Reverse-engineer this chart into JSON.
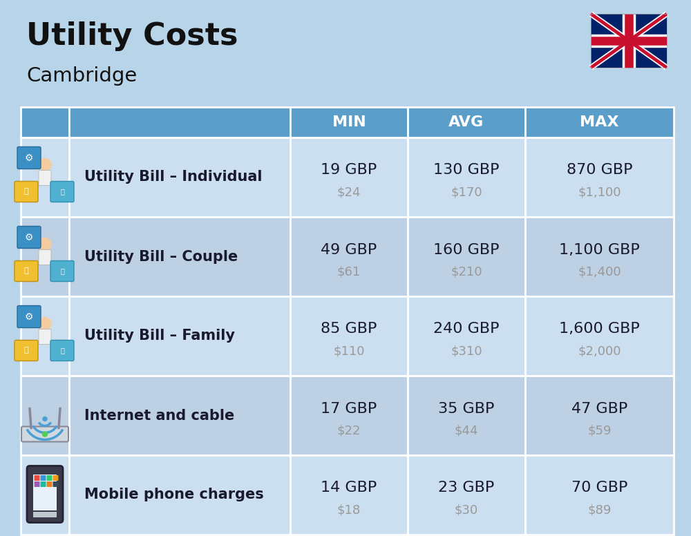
{
  "title": "Utility Costs",
  "subtitle": "Cambridge",
  "background_color": "#b8d4e8",
  "header_color": "#5b9ec9",
  "header_text_color": "#ffffff",
  "row_color_even": "#ccdff0",
  "row_color_odd": "#bdd0e4",
  "header_labels": [
    "MIN",
    "AVG",
    "MAX"
  ],
  "rows": [
    {
      "label": "Utility Bill – Individual",
      "min_gbp": "19 GBP",
      "min_usd": "$24",
      "avg_gbp": "130 GBP",
      "avg_usd": "$170",
      "max_gbp": "870 GBP",
      "max_usd": "$1,100"
    },
    {
      "label": "Utility Bill – Couple",
      "min_gbp": "49 GBP",
      "min_usd": "$61",
      "avg_gbp": "160 GBP",
      "avg_usd": "$210",
      "max_gbp": "1,100 GBP",
      "max_usd": "$1,400"
    },
    {
      "label": "Utility Bill – Family",
      "min_gbp": "85 GBP",
      "min_usd": "$110",
      "avg_gbp": "240 GBP",
      "avg_usd": "$310",
      "max_gbp": "1,600 GBP",
      "max_usd": "$2,000"
    },
    {
      "label": "Internet and cable",
      "min_gbp": "17 GBP",
      "min_usd": "$22",
      "avg_gbp": "35 GBP",
      "avg_usd": "$44",
      "max_gbp": "47 GBP",
      "max_usd": "$59"
    },
    {
      "label": "Mobile phone charges",
      "min_gbp": "14 GBP",
      "min_usd": "$18",
      "avg_gbp": "23 GBP",
      "avg_usd": "$30",
      "max_gbp": "70 GBP",
      "max_usd": "$89"
    }
  ],
  "title_fontsize": 32,
  "subtitle_fontsize": 21,
  "header_fontsize": 16,
  "label_fontsize": 15,
  "value_fontsize": 16,
  "usd_fontsize": 13,
  "gbp_color": "#1a1a2e",
  "usd_color": "#999999",
  "label_color": "#1a1a2e"
}
